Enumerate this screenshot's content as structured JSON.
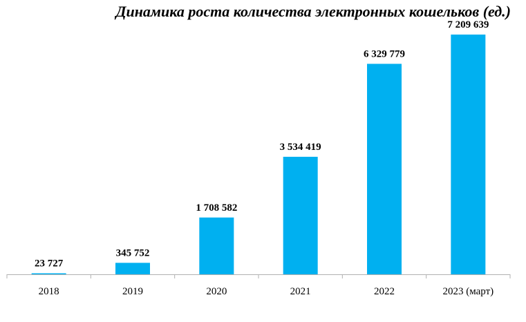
{
  "chart_data": {
    "type": "bar",
    "title": "Динамика роста количества электронных кошельков (ед.)",
    "xlabel": "",
    "ylabel": "",
    "categories": [
      "2018",
      "2019",
      "2020",
      "2021",
      "2022",
      "2023 (март)"
    ],
    "values": [
      23727,
      345752,
      1708582,
      3534419,
      6329779,
      7209639
    ],
    "value_labels": [
      "23 727",
      "345 752",
      "1 708 582",
      "3 534 419",
      "6 329 779",
      "7 209 639"
    ],
    "ylim": [
      0,
      8000000
    ],
    "grid": false,
    "legend": "none",
    "bar_color": "#00b0f0",
    "axis_color": "#b0b0b0"
  }
}
